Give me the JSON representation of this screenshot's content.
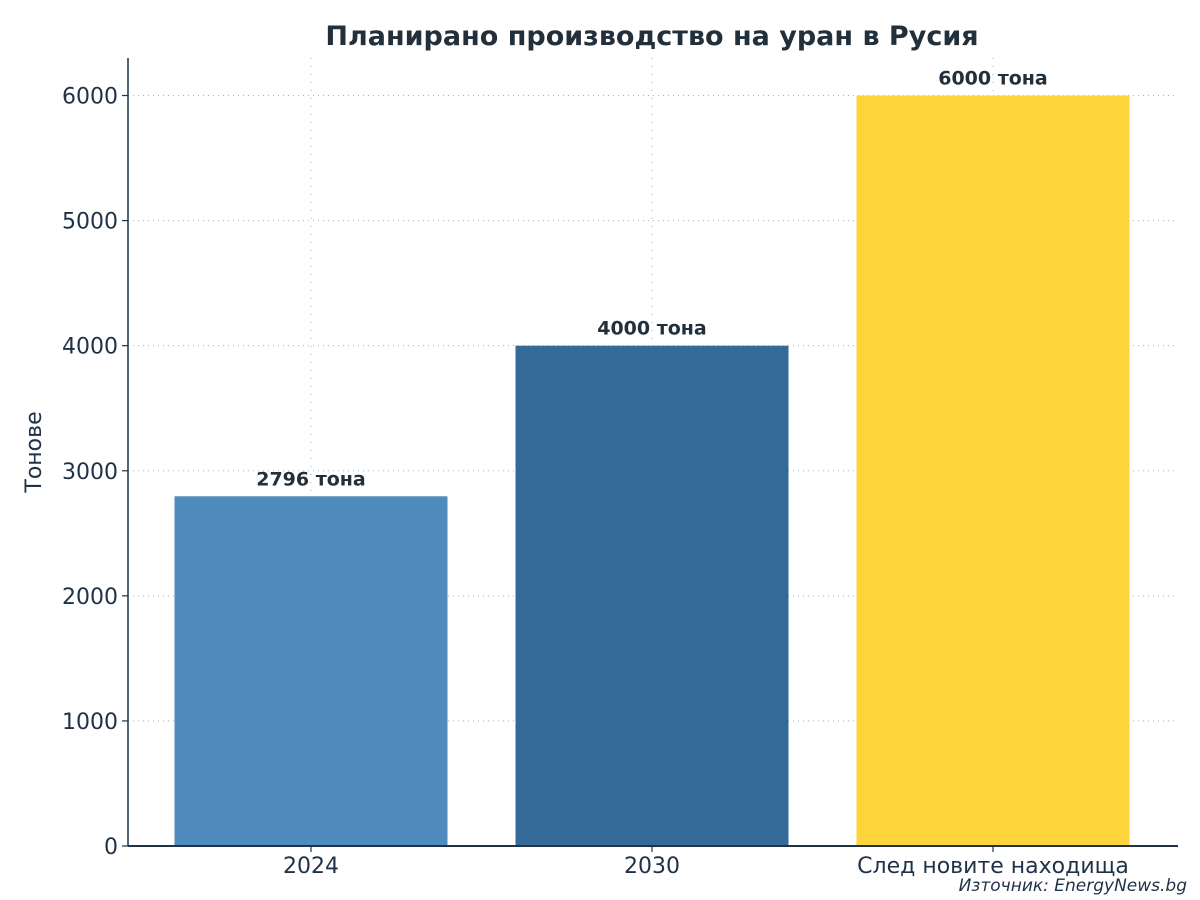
{
  "chart_data": {
    "type": "bar",
    "title": "Планирано производство на уран в Русия",
    "xlabel": "",
    "ylabel": "Тонове",
    "categories": [
      "2024",
      "2030",
      "След новите находища"
    ],
    "values": [
      2796,
      4000,
      6000
    ],
    "data_labels": [
      "2796 тона",
      "4000 тона",
      "6000 тона"
    ],
    "bar_colors": [
      "#4f8bbd",
      "#346a98",
      "#fdd43a"
    ],
    "ylim": [
      0,
      6300
    ],
    "yticks": [
      0,
      1000,
      2000,
      3000,
      4000,
      5000,
      6000
    ],
    "ytick_labels": [
      "0",
      "1000",
      "2000",
      "3000",
      "4000",
      "5000",
      "6000"
    ],
    "grid": true,
    "grid_style": "dotted",
    "source_note": "Източник: EnergyNews.bg"
  }
}
